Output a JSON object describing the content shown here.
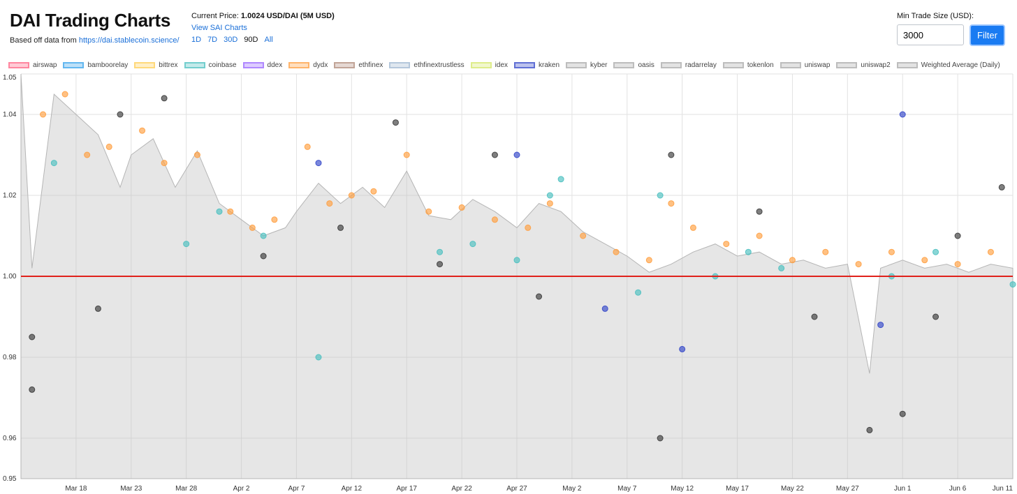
{
  "header": {
    "title": "DAI Trading Charts",
    "source_prefix": "Based off data from ",
    "source_link": "https://dai.stablecoin.science/"
  },
  "price": {
    "label": "Current Price:",
    "value": "1.0024 USD/DAI (5M USD)",
    "sai_link": "View SAI Charts",
    "ranges": [
      "1D",
      "7D",
      "30D",
      "90D",
      "All"
    ],
    "active_range": "90D"
  },
  "filter": {
    "label": "Min Trade Size (USD):",
    "value": "3000",
    "button": "Filter"
  },
  "legend": [
    {
      "name": "airswap",
      "color": "#ff6384"
    },
    {
      "name": "bamboorelay",
      "color": "#36a2eb"
    },
    {
      "name": "bittrex",
      "color": "#ffce56"
    },
    {
      "name": "coinbase",
      "color": "#4bc0c0"
    },
    {
      "name": "ddex",
      "color": "#9966ff"
    },
    {
      "name": "dydx",
      "color": "#ff9f40"
    },
    {
      "name": "ethfinex",
      "color": "#b08a7a"
    },
    {
      "name": "ethfinextrustless",
      "color": "#9fb7d0"
    },
    {
      "name": "idex",
      "color": "#d5e86a"
    },
    {
      "name": "kraken",
      "color": "#3346c9"
    },
    {
      "name": "kyber",
      "color": "#aaaaaa"
    },
    {
      "name": "oasis",
      "color": "#aaaaaa"
    },
    {
      "name": "radarrelay",
      "color": "#aaaaaa"
    },
    {
      "name": "tokenlon",
      "color": "#aaaaaa"
    },
    {
      "name": "uniswap",
      "color": "#aaaaaa"
    },
    {
      "name": "uniswap2",
      "color": "#aaaaaa"
    },
    {
      "name": "Weighted Average (Daily)",
      "color": "#aaaaaa"
    }
  ],
  "chart_data": {
    "type": "scatter",
    "x_range": [
      "2020-03-13",
      "2020-06-11"
    ],
    "ylim": [
      0.95,
      1.05
    ],
    "y_ticks": [
      0.95,
      0.96,
      0.98,
      1.0,
      1.02,
      1.04,
      1.05
    ],
    "x_ticks": [
      "Mar 18",
      "Mar 23",
      "Mar 28",
      "Apr 2",
      "Apr 7",
      "Apr 12",
      "Apr 17",
      "Apr 22",
      "Apr 27",
      "May 2",
      "May 7",
      "May 12",
      "May 17",
      "May 22",
      "May 27",
      "Jun 1",
      "Jun 6",
      "Jun 11"
    ],
    "x_tick_dates": [
      "2020-03-18",
      "2020-03-23",
      "2020-03-28",
      "2020-04-02",
      "2020-04-07",
      "2020-04-12",
      "2020-04-17",
      "2020-04-22",
      "2020-04-27",
      "2020-05-02",
      "2020-05-07",
      "2020-05-12",
      "2020-05-17",
      "2020-05-22",
      "2020-05-27",
      "2020-06-01",
      "2020-06-06",
      "2020-06-11"
    ],
    "reference_line": 1.0,
    "reference_color": "#e0211b",
    "grid": true,
    "weighted_average_daily": [
      {
        "date": "2020-03-13",
        "y": 1.05
      },
      {
        "date": "2020-03-14",
        "y": 1.002
      },
      {
        "date": "2020-03-16",
        "y": 1.045
      },
      {
        "date": "2020-03-18",
        "y": 1.04
      },
      {
        "date": "2020-03-20",
        "y": 1.035
      },
      {
        "date": "2020-03-22",
        "y": 1.022
      },
      {
        "date": "2020-03-23",
        "y": 1.03
      },
      {
        "date": "2020-03-25",
        "y": 1.034
      },
      {
        "date": "2020-03-27",
        "y": 1.022
      },
      {
        "date": "2020-03-29",
        "y": 1.031
      },
      {
        "date": "2020-03-31",
        "y": 1.018
      },
      {
        "date": "2020-04-02",
        "y": 1.014
      },
      {
        "date": "2020-04-04",
        "y": 1.01
      },
      {
        "date": "2020-04-06",
        "y": 1.012
      },
      {
        "date": "2020-04-07",
        "y": 1.016
      },
      {
        "date": "2020-04-09",
        "y": 1.023
      },
      {
        "date": "2020-04-11",
        "y": 1.018
      },
      {
        "date": "2020-04-13",
        "y": 1.022
      },
      {
        "date": "2020-04-15",
        "y": 1.017
      },
      {
        "date": "2020-04-17",
        "y": 1.026
      },
      {
        "date": "2020-04-19",
        "y": 1.015
      },
      {
        "date": "2020-04-21",
        "y": 1.014
      },
      {
        "date": "2020-04-23",
        "y": 1.019
      },
      {
        "date": "2020-04-25",
        "y": 1.016
      },
      {
        "date": "2020-04-27",
        "y": 1.012
      },
      {
        "date": "2020-04-29",
        "y": 1.018
      },
      {
        "date": "2020-05-01",
        "y": 1.016
      },
      {
        "date": "2020-05-03",
        "y": 1.011
      },
      {
        "date": "2020-05-05",
        "y": 1.008
      },
      {
        "date": "2020-05-07",
        "y": 1.005
      },
      {
        "date": "2020-05-09",
        "y": 1.001
      },
      {
        "date": "2020-05-11",
        "y": 1.003
      },
      {
        "date": "2020-05-13",
        "y": 1.006
      },
      {
        "date": "2020-05-15",
        "y": 1.008
      },
      {
        "date": "2020-05-17",
        "y": 1.005
      },
      {
        "date": "2020-05-19",
        "y": 1.006
      },
      {
        "date": "2020-05-21",
        "y": 1.003
      },
      {
        "date": "2020-05-23",
        "y": 1.004
      },
      {
        "date": "2020-05-25",
        "y": 1.002
      },
      {
        "date": "2020-05-27",
        "y": 1.003
      },
      {
        "date": "2020-05-29",
        "y": 0.976
      },
      {
        "date": "2020-05-30",
        "y": 1.002
      },
      {
        "date": "2020-06-01",
        "y": 1.004
      },
      {
        "date": "2020-06-03",
        "y": 1.002
      },
      {
        "date": "2020-06-05",
        "y": 1.003
      },
      {
        "date": "2020-06-07",
        "y": 1.001
      },
      {
        "date": "2020-06-09",
        "y": 1.003
      },
      {
        "date": "2020-06-11",
        "y": 1.002
      }
    ],
    "series": [
      {
        "name": "dydx",
        "color": "#ff9f40",
        "points": [
          {
            "date": "2020-03-15",
            "y": 1.04
          },
          {
            "date": "2020-03-17",
            "y": 1.045
          },
          {
            "date": "2020-03-19",
            "y": 1.03
          },
          {
            "date": "2020-03-21",
            "y": 1.032
          },
          {
            "date": "2020-03-24",
            "y": 1.036
          },
          {
            "date": "2020-03-26",
            "y": 1.028
          },
          {
            "date": "2020-03-29",
            "y": 1.03
          },
          {
            "date": "2020-04-01",
            "y": 1.016
          },
          {
            "date": "2020-04-03",
            "y": 1.012
          },
          {
            "date": "2020-04-05",
            "y": 1.014
          },
          {
            "date": "2020-04-08",
            "y": 1.032
          },
          {
            "date": "2020-04-10",
            "y": 1.018
          },
          {
            "date": "2020-04-12",
            "y": 1.02
          },
          {
            "date": "2020-04-14",
            "y": 1.021
          },
          {
            "date": "2020-04-17",
            "y": 1.03
          },
          {
            "date": "2020-04-19",
            "y": 1.016
          },
          {
            "date": "2020-04-22",
            "y": 1.017
          },
          {
            "date": "2020-04-25",
            "y": 1.014
          },
          {
            "date": "2020-04-28",
            "y": 1.012
          },
          {
            "date": "2020-04-30",
            "y": 1.018
          },
          {
            "date": "2020-05-03",
            "y": 1.01
          },
          {
            "date": "2020-05-06",
            "y": 1.006
          },
          {
            "date": "2020-05-09",
            "y": 1.004
          },
          {
            "date": "2020-05-11",
            "y": 1.018
          },
          {
            "date": "2020-05-13",
            "y": 1.012
          },
          {
            "date": "2020-05-16",
            "y": 1.008
          },
          {
            "date": "2020-05-19",
            "y": 1.01
          },
          {
            "date": "2020-05-22",
            "y": 1.004
          },
          {
            "date": "2020-05-25",
            "y": 1.006
          },
          {
            "date": "2020-05-28",
            "y": 1.003
          },
          {
            "date": "2020-05-31",
            "y": 1.006
          },
          {
            "date": "2020-06-03",
            "y": 1.004
          },
          {
            "date": "2020-06-06",
            "y": 1.003
          },
          {
            "date": "2020-06-09",
            "y": 1.006
          }
        ]
      },
      {
        "name": "coinbase",
        "color": "#4bc0c0",
        "points": [
          {
            "date": "2020-03-16",
            "y": 1.028
          },
          {
            "date": "2020-03-28",
            "y": 1.008
          },
          {
            "date": "2020-03-31",
            "y": 1.016
          },
          {
            "date": "2020-04-04",
            "y": 1.01
          },
          {
            "date": "2020-04-09",
            "y": 0.98
          },
          {
            "date": "2020-04-20",
            "y": 1.006
          },
          {
            "date": "2020-04-23",
            "y": 1.008
          },
          {
            "date": "2020-04-27",
            "y": 1.004
          },
          {
            "date": "2020-04-30",
            "y": 1.02
          },
          {
            "date": "2020-05-01",
            "y": 1.024
          },
          {
            "date": "2020-05-08",
            "y": 0.996
          },
          {
            "date": "2020-05-10",
            "y": 1.02
          },
          {
            "date": "2020-05-15",
            "y": 1.0
          },
          {
            "date": "2020-05-18",
            "y": 1.006
          },
          {
            "date": "2020-05-21",
            "y": 1.002
          },
          {
            "date": "2020-05-31",
            "y": 1.0
          },
          {
            "date": "2020-06-04",
            "y": 1.006
          },
          {
            "date": "2020-06-11",
            "y": 0.998
          }
        ]
      },
      {
        "name": "kraken",
        "color": "#3346c9",
        "points": [
          {
            "date": "2020-04-09",
            "y": 1.028
          },
          {
            "date": "2020-04-27",
            "y": 1.03
          },
          {
            "date": "2020-05-05",
            "y": 0.992
          },
          {
            "date": "2020-05-12",
            "y": 0.982
          },
          {
            "date": "2020-05-30",
            "y": 0.988
          },
          {
            "date": "2020-06-01",
            "y": 1.04
          }
        ]
      },
      {
        "name": "oasis",
        "color": "#3a3a3a",
        "points": [
          {
            "date": "2020-03-14",
            "y": 0.985
          },
          {
            "date": "2020-03-14",
            "y": 0.972
          },
          {
            "date": "2020-03-20",
            "y": 0.992
          },
          {
            "date": "2020-03-22",
            "y": 1.04
          },
          {
            "date": "2020-03-26",
            "y": 1.044
          },
          {
            "date": "2020-04-04",
            "y": 1.005
          },
          {
            "date": "2020-04-11",
            "y": 1.012
          },
          {
            "date": "2020-04-16",
            "y": 1.038
          },
          {
            "date": "2020-04-20",
            "y": 1.003
          },
          {
            "date": "2020-04-25",
            "y": 1.03
          },
          {
            "date": "2020-04-29",
            "y": 0.995
          },
          {
            "date": "2020-05-10",
            "y": 0.96
          },
          {
            "date": "2020-05-11",
            "y": 1.03
          },
          {
            "date": "2020-05-19",
            "y": 1.016
          },
          {
            "date": "2020-05-24",
            "y": 0.99
          },
          {
            "date": "2020-05-29",
            "y": 0.962
          },
          {
            "date": "2020-06-01",
            "y": 0.966
          },
          {
            "date": "2020-06-04",
            "y": 0.99
          },
          {
            "date": "2020-06-06",
            "y": 1.01
          },
          {
            "date": "2020-06-10",
            "y": 1.022
          }
        ]
      }
    ]
  }
}
